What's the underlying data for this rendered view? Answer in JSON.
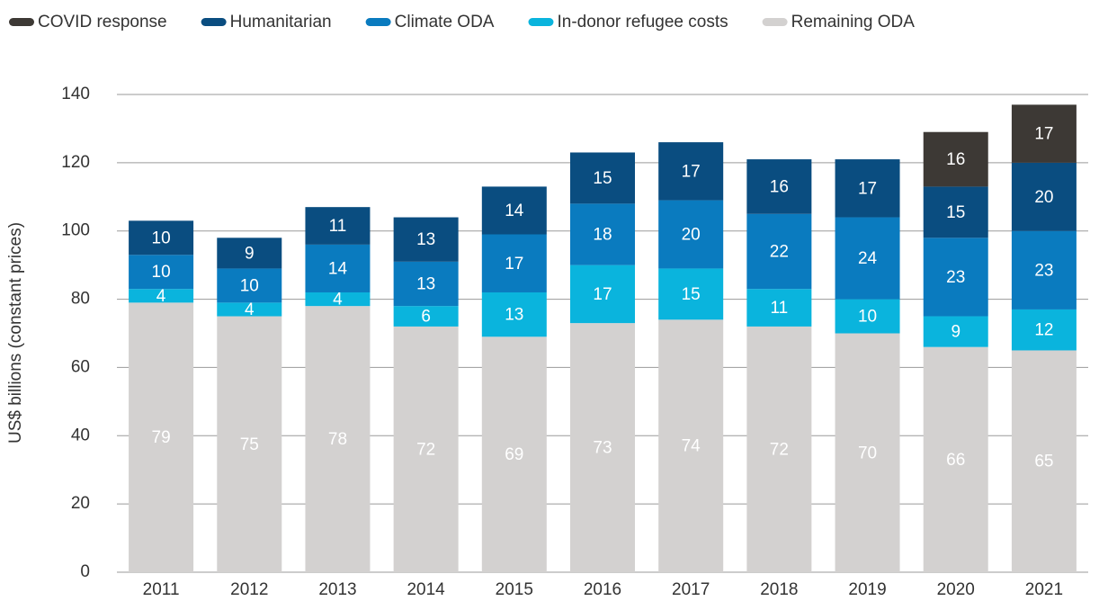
{
  "chart_data": {
    "type": "stacked_bar",
    "ylabel": "US$ billions (constant prices)",
    "categories": [
      "2011",
      "2012",
      "2013",
      "2014",
      "2015",
      "2016",
      "2017",
      "2018",
      "2019",
      "2020",
      "2021"
    ],
    "series": [
      {
        "name": "COVID response",
        "color": "#3d3935",
        "values": [
          null,
          null,
          null,
          null,
          null,
          null,
          null,
          null,
          null,
          16,
          17
        ]
      },
      {
        "name": "Humanitarian",
        "color": "#0a4d80",
        "values": [
          10,
          9,
          11,
          13,
          14,
          15,
          17,
          16,
          17,
          15,
          20
        ]
      },
      {
        "name": "Climate ODA",
        "color": "#0a7bbf",
        "values": [
          10,
          10,
          14,
          13,
          17,
          18,
          20,
          22,
          24,
          23,
          23
        ]
      },
      {
        "name": "In-donor refugee costs",
        "color": "#0ab4dd",
        "values": [
          4,
          4,
          4,
          6,
          13,
          17,
          15,
          11,
          10,
          9,
          12
        ]
      },
      {
        "name": "Remaining ODA",
        "color": "#d3d1d0",
        "values": [
          79,
          75,
          78,
          72,
          69,
          73,
          74,
          72,
          70,
          66,
          65
        ]
      }
    ],
    "ylim": [
      0,
      140
    ],
    "yticks": [
      0,
      20,
      40,
      60,
      80,
      100,
      120,
      140
    ],
    "grid": true,
    "legend": "top"
  }
}
